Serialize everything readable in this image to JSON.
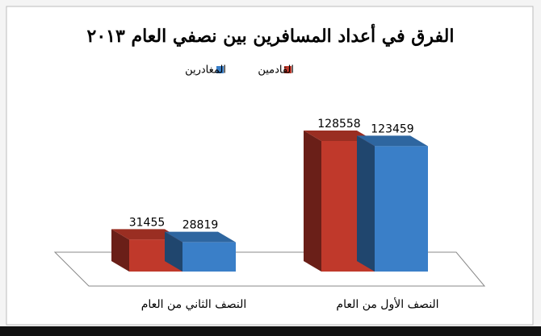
{
  "chart_data": {
    "type": "bar3d",
    "title": "الفرق في أعداد المسافرين بين نصفي العام ٢٠١٣",
    "categories": [
      "النصف الأول من العام",
      "النصف الثاني من العام"
    ],
    "series": [
      {
        "name": "القادمين",
        "color": "#c0392b",
        "values": [
          128558,
          31455
        ]
      },
      {
        "name": "المغادرين",
        "color": "#3a7fc8",
        "values": [
          123459,
          28819
        ]
      }
    ]
  }
}
